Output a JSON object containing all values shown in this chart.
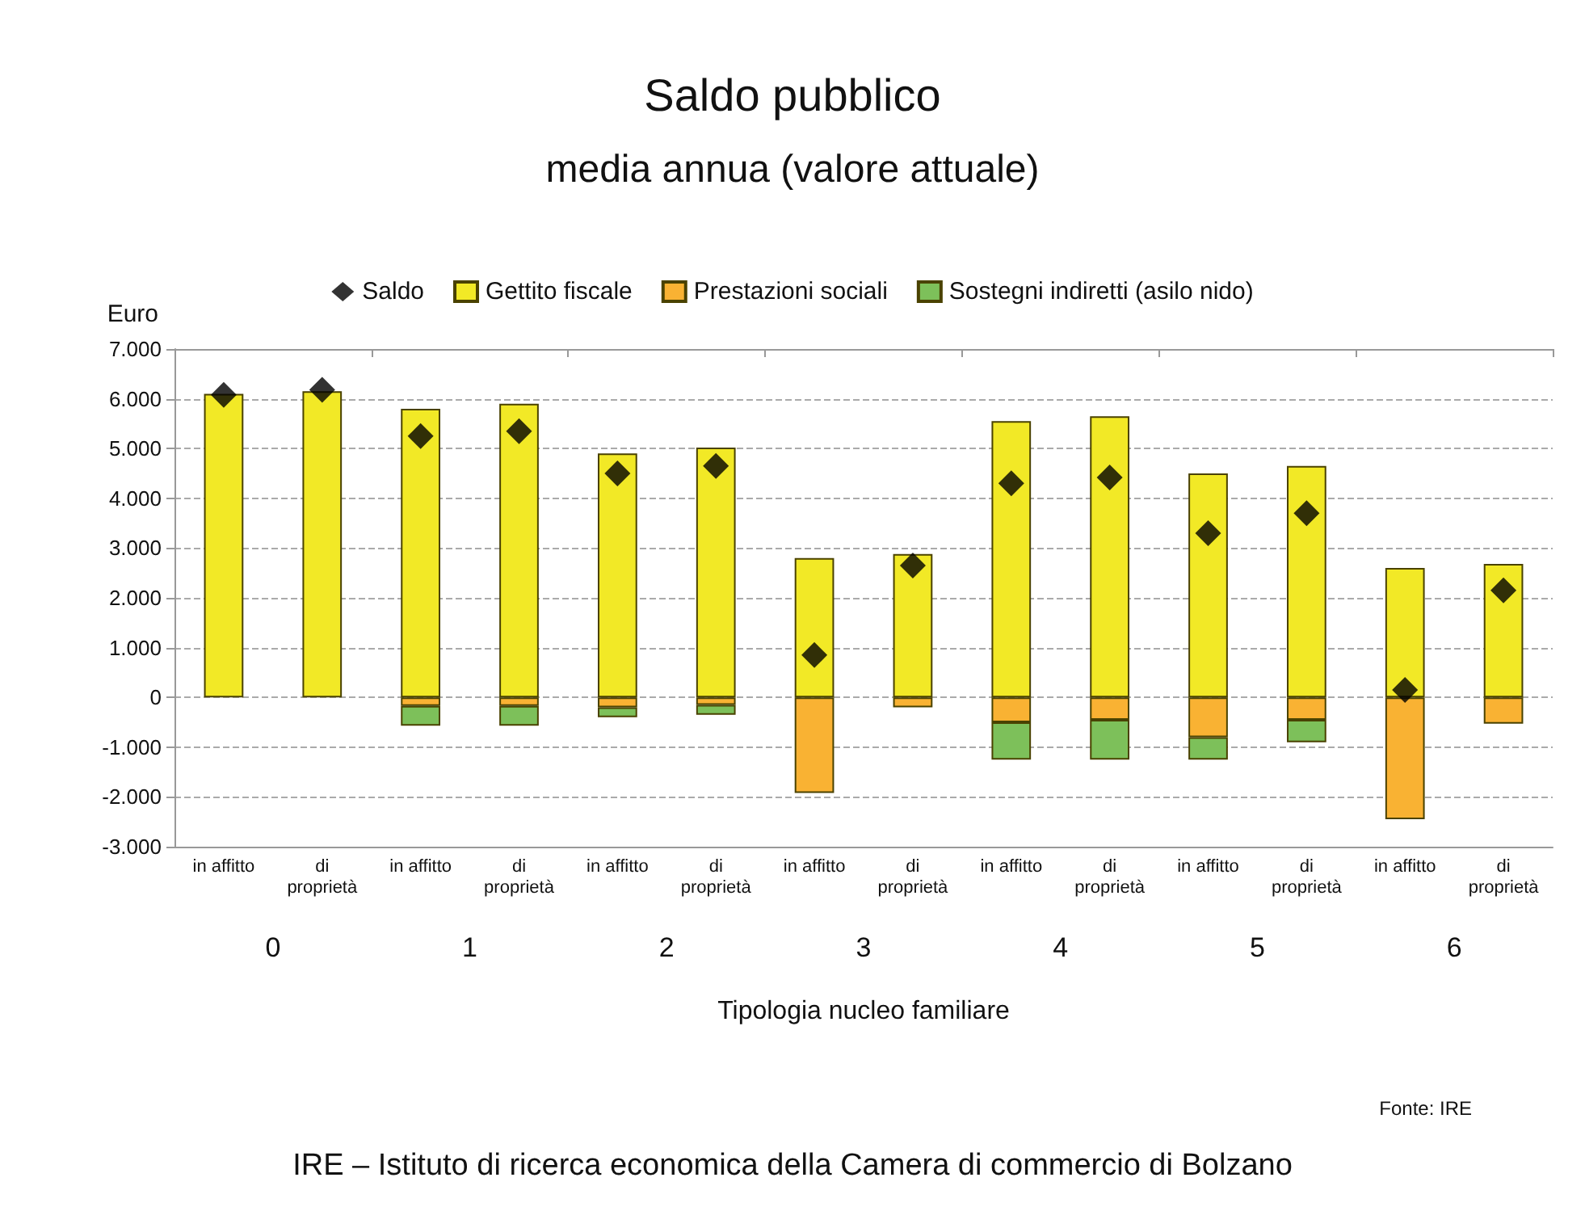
{
  "chart_data": {
    "type": "bar",
    "stacked": true,
    "title": "Saldo pubblico",
    "subtitle": "media annua (valore attuale)",
    "xlabel": "Tipologia nucleo familiare",
    "ylabel": "Euro",
    "categories": [
      "in affitto",
      "di\nproprietà",
      "in affitto",
      "di\nproprietà",
      "in affitto",
      "di\nproprietà",
      "in affitto",
      "di\nproprietà",
      "in affitto",
      "di\nproprietà",
      "in affitto",
      "di\nproprietà",
      "in affitto",
      "di\nproprietà"
    ],
    "series": [
      {
        "name": "Saldo",
        "type": "scatter",
        "marker": "diamond",
        "color": "#000000",
        "values": [
          6080,
          6180,
          5250,
          5350,
          4500,
          4650,
          850,
          2650,
          4300,
          4420,
          3300,
          3700,
          150,
          2150
        ]
      },
      {
        "name": "Gettito fiscale",
        "color": "#f2e926",
        "values": [
          6100,
          6150,
          5800,
          5900,
          4900,
          5020,
          2800,
          2880,
          5550,
          5650,
          4500,
          4650,
          2600,
          2680
        ]
      },
      {
        "name": "Prestazioni sociali",
        "color": "#f9b233",
        "values": [
          null,
          null,
          -170,
          -170,
          -200,
          -150,
          -1920,
          -200,
          -500,
          -450,
          -800,
          -450,
          -2450,
          -530
        ]
      },
      {
        "name": "Sostegni indiretti (asilo nido)",
        "color": "#7dc05a",
        "values": [
          null,
          null,
          -400,
          -400,
          -200,
          -200,
          null,
          null,
          -750,
          -800,
          -450,
          -450,
          null,
          null
        ]
      }
    ],
    "ylim": [
      -3000,
      7000
    ],
    "yticks": [
      {
        "value": -3000,
        "label": "-3.000"
      },
      {
        "value": -2000,
        "label": "-2.000"
      },
      {
        "value": -1000,
        "label": "-1.000"
      },
      0,
      {
        "value": 1000,
        "label": "1.000"
      },
      {
        "value": 2000,
        "label": "2.000"
      },
      {
        "value": 3000,
        "label": "3.000"
      },
      {
        "value": 4000,
        "label": "4.000"
      },
      {
        "value": 5000,
        "label": "5.000"
      },
      {
        "value": 6000,
        "label": "6.000"
      },
      {
        "value": 7000,
        "label": "7.000"
      }
    ],
    "grid": "y",
    "legend": "top",
    "annotations": [
      "0",
      "1",
      "2",
      "3",
      "4",
      "5",
      "6",
      "Fonte: IRE",
      "IRE – Istituto di ricerca economica della Camera di commercio di Bolzano"
    ]
  }
}
